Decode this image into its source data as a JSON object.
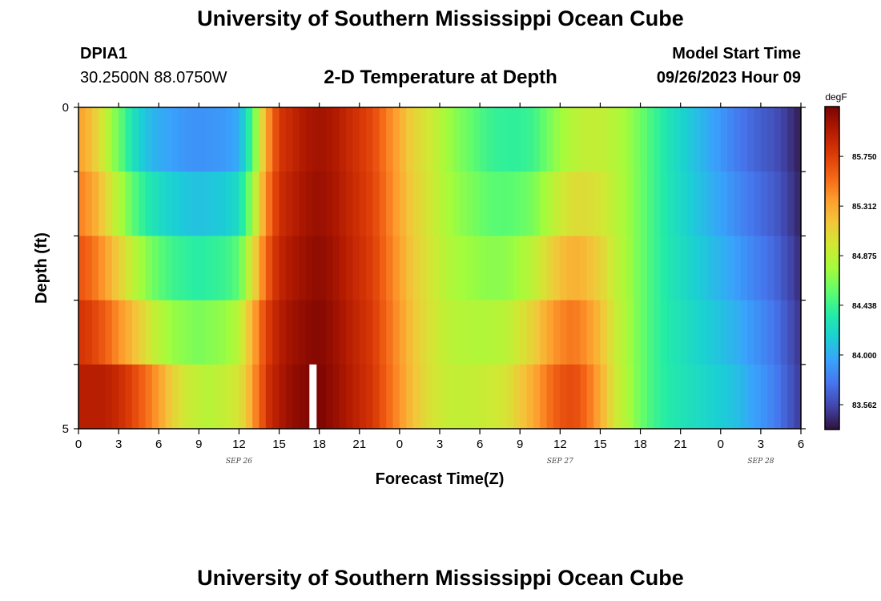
{
  "header": {
    "title": "University of Southern Mississippi Ocean Cube",
    "station": "DPIA1",
    "coords": "30.2500N  88.0750W",
    "subtitle": "2-D Temperature at Depth",
    "model_start_label": "Model Start Time",
    "model_start_value": "09/26/2023 Hour 09"
  },
  "footer": {
    "title": "University of Southern Mississippi Ocean Cube"
  },
  "chart_data": {
    "type": "heatmap",
    "title": "2-D Temperature at Depth",
    "xlabel": "Forecast Time(Z)",
    "ylabel": "Depth (ft)",
    "x_tick_labels": [
      "0",
      "3",
      "6",
      "9",
      "12",
      "15",
      "18",
      "21",
      "0",
      "3",
      "6",
      "9",
      "12",
      "15",
      "18",
      "21",
      "0",
      "3",
      "6"
    ],
    "x_day_labels": [
      {
        "label": "SEP 26",
        "at_hour": 12
      },
      {
        "label": "SEP 27",
        "at_hour": 36
      },
      {
        "label": "SEP 28",
        "at_hour": 51
      }
    ],
    "x_range_hours": [
      0,
      54
    ],
    "y_tick_labels": [
      "0",
      "5"
    ],
    "ylim": [
      0,
      5
    ],
    "y_reversed": true,
    "depth_rows": 5,
    "colorbar": {
      "units": "degF",
      "ticks": [
        83.562,
        84.0,
        84.438,
        84.875,
        85.312,
        85.75
      ],
      "tick_labels": [
        "83.562",
        "84.000",
        "84.438",
        "84.875",
        "85.312",
        "85.750"
      ],
      "range": [
        83.343,
        86.189
      ],
      "colormap": [
        "#30123b",
        "#4145ab",
        "#4675ed",
        "#39a2fc",
        "#1bcfd4",
        "#24eca6",
        "#61fc6c",
        "#a4fc3b",
        "#d1e834",
        "#f3c63a",
        "#fe9b2d",
        "#f36315",
        "#d93806",
        "#b11901",
        "#7a0402"
      ]
    },
    "profiles": {
      "hours": [
        0,
        1,
        2,
        3,
        4,
        5,
        6,
        7,
        8,
        9,
        10,
        11,
        12,
        13,
        14,
        15,
        16,
        17,
        18,
        19,
        20,
        21,
        22,
        23,
        24,
        25,
        26,
        27,
        28,
        29,
        30,
        31,
        32,
        33,
        34,
        35,
        36,
        37,
        38,
        39,
        40,
        41,
        42,
        43,
        44,
        45,
        46,
        47,
        48,
        49,
        50,
        51,
        52,
        53,
        54
      ],
      "surface": [
        85.35,
        85.2,
        84.9,
        84.6,
        84.3,
        84.1,
        84.0,
        83.95,
        83.9,
        83.88,
        83.9,
        83.92,
        84.0,
        84.5,
        85.3,
        85.8,
        85.9,
        86.0,
        86.05,
        86.0,
        85.9,
        85.8,
        85.7,
        85.5,
        85.3,
        85.1,
        85.0,
        84.85,
        84.7,
        84.6,
        84.5,
        84.42,
        84.4,
        84.4,
        84.45,
        84.6,
        84.75,
        84.85,
        84.9,
        84.9,
        84.85,
        84.75,
        84.6,
        84.45,
        84.3,
        84.2,
        84.1,
        84.0,
        83.9,
        83.8,
        83.72,
        83.65,
        83.6,
        83.5,
        83.38
      ],
      "bottom": [
        85.95,
        85.9,
        85.8,
        85.65,
        85.5,
        85.3,
        85.1,
        84.95,
        84.9,
        84.85,
        84.9,
        84.95,
        85.1,
        85.5,
        85.85,
        86.0,
        86.1,
        86.15,
        86.18,
        86.1,
        86.0,
        85.9,
        85.8,
        85.6,
        85.4,
        85.2,
        85.05,
        84.95,
        84.9,
        84.9,
        84.92,
        84.95,
        85.0,
        85.15,
        85.3,
        85.5,
        85.65,
        85.7,
        85.55,
        85.3,
        85.0,
        84.8,
        84.6,
        84.45,
        84.35,
        84.3,
        84.25,
        84.2,
        84.15,
        84.1,
        84.0,
        83.9,
        83.8,
        83.65,
        83.5
      ],
      "surface_mixing_weights": [
        0,
        0.22,
        0.5,
        0.78,
        1.0
      ],
      "bottom_row_early_delay_hours": 2
    },
    "annotations": [
      {
        "type": "gap",
        "hour": 17.5,
        "depth_row": 5
      }
    ]
  }
}
